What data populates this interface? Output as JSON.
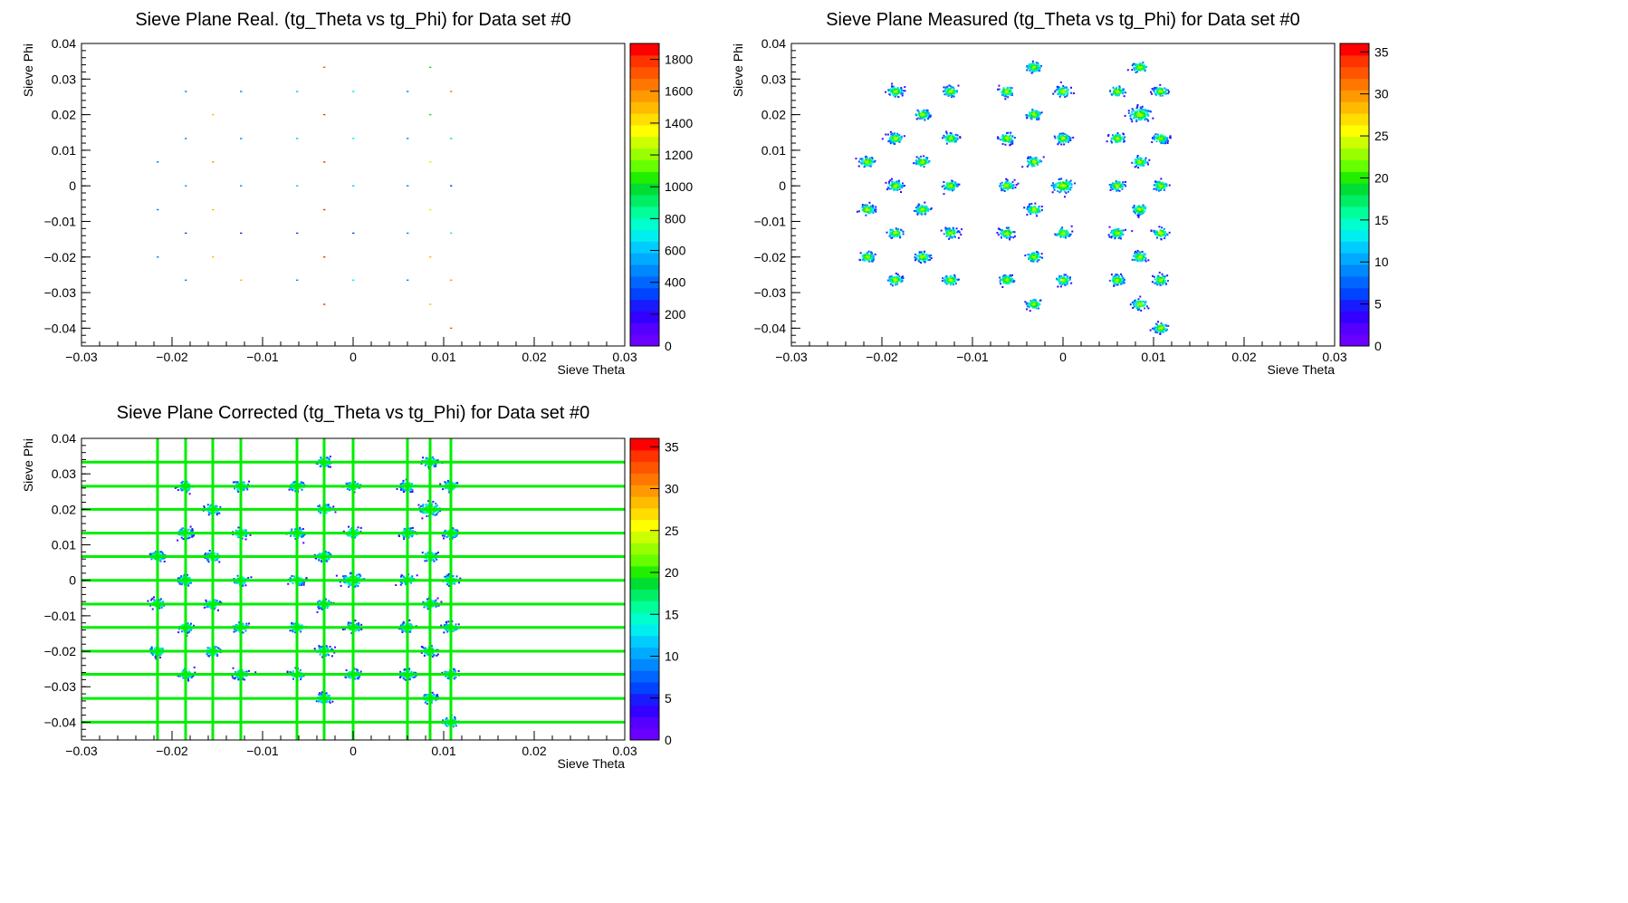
{
  "palette": [
    "#6a00ff",
    "#5500ff",
    "#3300ff",
    "#1a1aff",
    "#0044ff",
    "#0066ff",
    "#0088ff",
    "#00aaff",
    "#00ccff",
    "#00eeee",
    "#00ffcc",
    "#00ff99",
    "#00ee66",
    "#00dd33",
    "#22ee00",
    "#66ff00",
    "#99ff00",
    "#ccff00",
    "#ffff00",
    "#ffdd00",
    "#ffbb00",
    "#ff9900",
    "#ff7700",
    "#ff5500",
    "#ff3300",
    "#ff0000"
  ],
  "grid_color": "#00ee00",
  "chart_data": [
    {
      "type": "heatmap",
      "title": "Sieve Plane Real. (tg_Theta vs tg_Phi) for Data set #0",
      "xlabel": "Sieve Theta",
      "ylabel": "Sieve Phi",
      "xlim": [
        -0.03,
        0.03
      ],
      "ylim": [
        -0.045,
        0.04
      ],
      "x_ticks": [
        "−0.03",
        "−0.02",
        "−0.01",
        "0",
        "0.01",
        "0.02",
        "0.03"
      ],
      "x_tick_values": [
        -0.03,
        -0.02,
        -0.01,
        0,
        0.01,
        0.02,
        0.03
      ],
      "y_ticks": [
        "0.04",
        "0.03",
        "0.02",
        "0.01",
        "0",
        "−0.01",
        "−0.02",
        "−0.03",
        "−0.04"
      ],
      "y_tick_values": [
        0.04,
        0.03,
        0.02,
        0.01,
        0,
        -0.01,
        -0.02,
        -0.03,
        -0.04
      ],
      "z_range": [
        0,
        1900
      ],
      "z_ticks": [
        "1800",
        "1600",
        "1400",
        "1200",
        "1000",
        "800",
        "600",
        "400",
        "200",
        "0"
      ],
      "z_tick_values": [
        1800,
        1600,
        1400,
        1200,
        1000,
        800,
        600,
        400,
        200,
        0
      ],
      "spot_style": "point",
      "spots": [
        {
          "x": -0.0032,
          "y": 0.0333,
          "z": 1750
        },
        {
          "x": 0.0085,
          "y": 0.0333,
          "z": 1000
        },
        {
          "x": -0.0185,
          "y": 0.0265,
          "z": 450
        },
        {
          "x": -0.0124,
          "y": 0.0265,
          "z": 450
        },
        {
          "x": -0.0062,
          "y": 0.0265,
          "z": 650
        },
        {
          "x": 0.0,
          "y": 0.0265,
          "z": 700
        },
        {
          "x": 0.006,
          "y": 0.0265,
          "z": 500
        },
        {
          "x": 0.0108,
          "y": 0.0265,
          "z": 1650
        },
        {
          "x": -0.0155,
          "y": 0.02,
          "z": 1500
        },
        {
          "x": -0.0032,
          "y": 0.02,
          "z": 1800
        },
        {
          "x": 0.0085,
          "y": 0.02,
          "z": 1000
        },
        {
          "x": -0.0185,
          "y": 0.0133,
          "z": 500
        },
        {
          "x": -0.0124,
          "y": 0.0133,
          "z": 450
        },
        {
          "x": -0.0062,
          "y": 0.0133,
          "z": 650
        },
        {
          "x": 0.0,
          "y": 0.0133,
          "z": 700
        },
        {
          "x": 0.006,
          "y": 0.0133,
          "z": 500
        },
        {
          "x": 0.0108,
          "y": 0.0133,
          "z": 900
        },
        {
          "x": -0.0216,
          "y": 0.0067,
          "z": 500
        },
        {
          "x": -0.0155,
          "y": 0.0067,
          "z": 1600
        },
        {
          "x": -0.0032,
          "y": 0.0067,
          "z": 1800
        },
        {
          "x": 0.0085,
          "y": 0.0067,
          "z": 1300
        },
        {
          "x": -0.0185,
          "y": 0.0,
          "z": 550
        },
        {
          "x": -0.0124,
          "y": 0.0,
          "z": 450
        },
        {
          "x": -0.0062,
          "y": 0.0,
          "z": 600
        },
        {
          "x": 0.0,
          "y": 0.0,
          "z": 650
        },
        {
          "x": 0.006,
          "y": 0.0,
          "z": 450
        },
        {
          "x": 0.0108,
          "y": 0.0,
          "z": 350
        },
        {
          "x": -0.0216,
          "y": -0.0067,
          "z": 500
        },
        {
          "x": -0.0155,
          "y": -0.0067,
          "z": 1500
        },
        {
          "x": -0.0032,
          "y": -0.0067,
          "z": 1800
        },
        {
          "x": 0.0085,
          "y": -0.0067,
          "z": 1300
        },
        {
          "x": -0.0185,
          "y": -0.0133,
          "z": 300
        },
        {
          "x": -0.0124,
          "y": -0.0133,
          "z": 250
        },
        {
          "x": -0.0062,
          "y": -0.0133,
          "z": 300
        },
        {
          "x": 0.0,
          "y": -0.0133,
          "z": 300
        },
        {
          "x": 0.006,
          "y": -0.0133,
          "z": 450
        },
        {
          "x": 0.0108,
          "y": -0.0133,
          "z": 700
        },
        {
          "x": -0.0216,
          "y": -0.02,
          "z": 500
        },
        {
          "x": -0.0155,
          "y": -0.02,
          "z": 1500
        },
        {
          "x": -0.0032,
          "y": -0.02,
          "z": 1800
        },
        {
          "x": 0.0085,
          "y": -0.02,
          "z": 1500
        },
        {
          "x": -0.0185,
          "y": -0.0265,
          "z": 450
        },
        {
          "x": -0.0124,
          "y": -0.0265,
          "z": 1500
        },
        {
          "x": -0.0062,
          "y": -0.0265,
          "z": 500
        },
        {
          "x": 0.0,
          "y": -0.0265,
          "z": 700
        },
        {
          "x": 0.006,
          "y": -0.0265,
          "z": 450
        },
        {
          "x": 0.0108,
          "y": -0.0265,
          "z": 1600
        },
        {
          "x": -0.0032,
          "y": -0.0333,
          "z": 1800
        },
        {
          "x": 0.0085,
          "y": -0.0333,
          "z": 1500
        },
        {
          "x": 0.0108,
          "y": -0.04,
          "z": 1700
        }
      ],
      "grid_lines": null
    },
    {
      "type": "heatmap",
      "title": "Sieve Plane Measured (tg_Theta vs tg_Phi) for Data set #0",
      "xlabel": "Sieve Theta",
      "ylabel": "Sieve Phi",
      "xlim": [
        -0.03,
        0.03
      ],
      "ylim": [
        -0.045,
        0.04
      ],
      "x_ticks": [
        "−0.03",
        "−0.02",
        "−0.01",
        "0",
        "0.01",
        "0.02",
        "0.03"
      ],
      "x_tick_values": [
        -0.03,
        -0.02,
        -0.01,
        0,
        0.01,
        0.02,
        0.03
      ],
      "y_ticks": [
        "0.04",
        "0.03",
        "0.02",
        "0.01",
        "0",
        "−0.01",
        "−0.02",
        "−0.03",
        "−0.04"
      ],
      "y_tick_values": [
        0.04,
        0.03,
        0.02,
        0.01,
        0,
        -0.01,
        -0.02,
        -0.03,
        -0.04
      ],
      "z_range": [
        0,
        36
      ],
      "z_ticks": [
        "35",
        "30",
        "25",
        "20",
        "15",
        "10",
        "5",
        "0"
      ],
      "z_tick_values": [
        35,
        30,
        25,
        20,
        15,
        10,
        5,
        0
      ],
      "spot_style": "blob",
      "spots": [
        {
          "x": -0.0032,
          "y": 0.0333
        },
        {
          "x": 0.0085,
          "y": 0.0333
        },
        {
          "x": -0.0185,
          "y": 0.0265
        },
        {
          "x": -0.0124,
          "y": 0.0265
        },
        {
          "x": -0.0062,
          "y": 0.0265
        },
        {
          "x": 0.0,
          "y": 0.0265
        },
        {
          "x": 0.006,
          "y": 0.0265
        },
        {
          "x": 0.0108,
          "y": 0.0265
        },
        {
          "x": -0.0155,
          "y": 0.02
        },
        {
          "x": -0.0032,
          "y": 0.02
        },
        {
          "x": 0.0085,
          "y": 0.02
        },
        {
          "x": -0.0185,
          "y": 0.0133
        },
        {
          "x": -0.0124,
          "y": 0.0133
        },
        {
          "x": -0.0062,
          "y": 0.0133
        },
        {
          "x": 0.0,
          "y": 0.0133
        },
        {
          "x": 0.006,
          "y": 0.0133
        },
        {
          "x": 0.0108,
          "y": 0.0133
        },
        {
          "x": -0.0216,
          "y": 0.0067
        },
        {
          "x": -0.0155,
          "y": 0.0067
        },
        {
          "x": -0.0032,
          "y": 0.0067
        },
        {
          "x": 0.0085,
          "y": 0.0067
        },
        {
          "x": -0.0185,
          "y": 0.0
        },
        {
          "x": -0.0124,
          "y": 0.0
        },
        {
          "x": -0.0062,
          "y": 0.0
        },
        {
          "x": 0.0,
          "y": 0.0
        },
        {
          "x": 0.006,
          "y": 0.0
        },
        {
          "x": 0.0108,
          "y": 0.0
        },
        {
          "x": -0.0216,
          "y": -0.0067
        },
        {
          "x": -0.0155,
          "y": -0.0067
        },
        {
          "x": -0.0032,
          "y": -0.0067
        },
        {
          "x": 0.0085,
          "y": -0.0067
        },
        {
          "x": -0.0185,
          "y": -0.0133
        },
        {
          "x": -0.0124,
          "y": -0.0133
        },
        {
          "x": -0.0062,
          "y": -0.0133
        },
        {
          "x": 0.0,
          "y": -0.0133
        },
        {
          "x": 0.006,
          "y": -0.0133
        },
        {
          "x": 0.0108,
          "y": -0.0133
        },
        {
          "x": -0.0216,
          "y": -0.02
        },
        {
          "x": -0.0155,
          "y": -0.02
        },
        {
          "x": -0.0032,
          "y": -0.02
        },
        {
          "x": 0.0085,
          "y": -0.02
        },
        {
          "x": -0.0185,
          "y": -0.0265
        },
        {
          "x": -0.0124,
          "y": -0.0265
        },
        {
          "x": -0.0062,
          "y": -0.0265
        },
        {
          "x": 0.0,
          "y": -0.0265
        },
        {
          "x": 0.006,
          "y": -0.0265
        },
        {
          "x": 0.0108,
          "y": -0.0265
        },
        {
          "x": -0.0032,
          "y": -0.0333
        },
        {
          "x": 0.0085,
          "y": -0.0333
        },
        {
          "x": 0.0108,
          "y": -0.04
        }
      ],
      "grid_lines": null
    },
    {
      "type": "heatmap",
      "title": "Sieve Plane Corrected (tg_Theta vs tg_Phi) for Data set #0",
      "xlabel": "Sieve Theta",
      "ylabel": "Sieve Phi",
      "xlim": [
        -0.03,
        0.03
      ],
      "ylim": [
        -0.045,
        0.04
      ],
      "x_ticks": [
        "−0.03",
        "−0.02",
        "−0.01",
        "0",
        "0.01",
        "0.02",
        "0.03"
      ],
      "x_tick_values": [
        -0.03,
        -0.02,
        -0.01,
        0,
        0.01,
        0.02,
        0.03
      ],
      "y_ticks": [
        "0.04",
        "0.03",
        "0.02",
        "0.01",
        "0",
        "−0.01",
        "−0.02",
        "−0.03",
        "−0.04"
      ],
      "y_tick_values": [
        0.04,
        0.03,
        0.02,
        0.01,
        0,
        -0.01,
        -0.02,
        -0.03,
        -0.04
      ],
      "z_range": [
        0,
        36
      ],
      "z_ticks": [
        "35",
        "30",
        "25",
        "20",
        "15",
        "10",
        "5",
        "0"
      ],
      "z_tick_values": [
        35,
        30,
        25,
        20,
        15,
        10,
        5,
        0
      ],
      "spot_style": "blob",
      "spots": [
        {
          "x": -0.0032,
          "y": 0.0333
        },
        {
          "x": 0.0085,
          "y": 0.0333
        },
        {
          "x": -0.0185,
          "y": 0.0265
        },
        {
          "x": -0.0124,
          "y": 0.0265
        },
        {
          "x": -0.0062,
          "y": 0.0265
        },
        {
          "x": 0.0,
          "y": 0.0265
        },
        {
          "x": 0.006,
          "y": 0.0265
        },
        {
          "x": 0.0108,
          "y": 0.0265
        },
        {
          "x": -0.0155,
          "y": 0.02
        },
        {
          "x": -0.0032,
          "y": 0.02
        },
        {
          "x": 0.0085,
          "y": 0.02
        },
        {
          "x": -0.0185,
          "y": 0.0133
        },
        {
          "x": -0.0124,
          "y": 0.0133
        },
        {
          "x": -0.0062,
          "y": 0.0133
        },
        {
          "x": 0.0,
          "y": 0.0133
        },
        {
          "x": 0.006,
          "y": 0.0133
        },
        {
          "x": 0.0108,
          "y": 0.0133
        },
        {
          "x": -0.0216,
          "y": 0.0067
        },
        {
          "x": -0.0155,
          "y": 0.0067
        },
        {
          "x": -0.0032,
          "y": 0.0067
        },
        {
          "x": 0.0085,
          "y": 0.0067
        },
        {
          "x": -0.0185,
          "y": 0.0
        },
        {
          "x": -0.0124,
          "y": 0.0
        },
        {
          "x": -0.0062,
          "y": 0.0
        },
        {
          "x": 0.0,
          "y": 0.0
        },
        {
          "x": 0.006,
          "y": 0.0
        },
        {
          "x": 0.0108,
          "y": 0.0
        },
        {
          "x": -0.0216,
          "y": -0.0067
        },
        {
          "x": -0.0155,
          "y": -0.0067
        },
        {
          "x": -0.0032,
          "y": -0.0067
        },
        {
          "x": 0.0085,
          "y": -0.0067
        },
        {
          "x": -0.0185,
          "y": -0.0133
        },
        {
          "x": -0.0124,
          "y": -0.0133
        },
        {
          "x": -0.0062,
          "y": -0.0133
        },
        {
          "x": 0.0,
          "y": -0.0133
        },
        {
          "x": 0.006,
          "y": -0.0133
        },
        {
          "x": 0.0108,
          "y": -0.0133
        },
        {
          "x": -0.0216,
          "y": -0.02
        },
        {
          "x": -0.0155,
          "y": -0.02
        },
        {
          "x": -0.0032,
          "y": -0.02
        },
        {
          "x": 0.0085,
          "y": -0.02
        },
        {
          "x": -0.0185,
          "y": -0.0265
        },
        {
          "x": -0.0124,
          "y": -0.0265
        },
        {
          "x": -0.0062,
          "y": -0.0265
        },
        {
          "x": 0.0,
          "y": -0.0265
        },
        {
          "x": 0.006,
          "y": -0.0265
        },
        {
          "x": 0.0108,
          "y": -0.0265
        },
        {
          "x": -0.0032,
          "y": -0.0333
        },
        {
          "x": 0.0085,
          "y": -0.0333
        },
        {
          "x": 0.0108,
          "y": -0.04
        }
      ],
      "grid_lines": {
        "x": [
          -0.0216,
          -0.0185,
          -0.0155,
          -0.0124,
          -0.0062,
          -0.0032,
          0.0,
          0.006,
          0.0085,
          0.0108
        ],
        "y": [
          0.0333,
          0.0265,
          0.02,
          0.0133,
          0.0067,
          0.0,
          -0.0067,
          -0.0133,
          -0.02,
          -0.0265,
          -0.0333,
          -0.04
        ]
      }
    }
  ]
}
